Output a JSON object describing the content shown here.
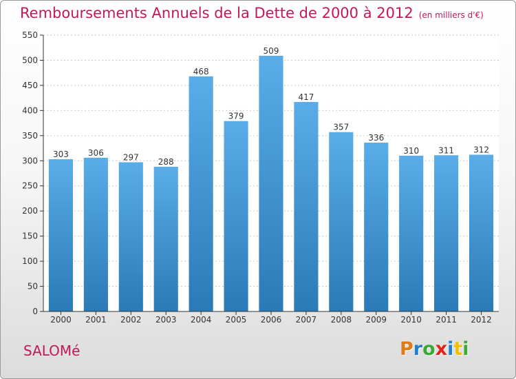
{
  "chart_data": {
    "type": "bar",
    "title": "Remboursements Annuels de la Dette de 2000 à 2012",
    "subtitle": "(en milliers d'€)",
    "categories": [
      "2000",
      "2001",
      "2002",
      "2003",
      "2004",
      "2005",
      "2006",
      "2007",
      "2008",
      "2009",
      "2010",
      "2011",
      "2012"
    ],
    "values": [
      303,
      306,
      297,
      288,
      468,
      379,
      509,
      417,
      357,
      336,
      310,
      311,
      312
    ],
    "ylim": [
      0,
      550
    ],
    "yticks": [
      0,
      50,
      100,
      150,
      200,
      250,
      300,
      350,
      400,
      450,
      500,
      550
    ],
    "grid": true,
    "bar_color_top": "#5aade8",
    "bar_color_bottom": "#2a7ab8"
  },
  "footer": {
    "commune": "SALOMé",
    "logo_text": "Proxiti",
    "logo_colors": [
      "#e07b1a",
      "#1f7fd0",
      "#3aaa35",
      "#e2231a",
      "#1f7fd0",
      "#f0c000",
      "#3aaa35"
    ]
  },
  "colors": {
    "title": "#c2185b",
    "axis": "#333333",
    "grid": "#c8c8c8"
  }
}
